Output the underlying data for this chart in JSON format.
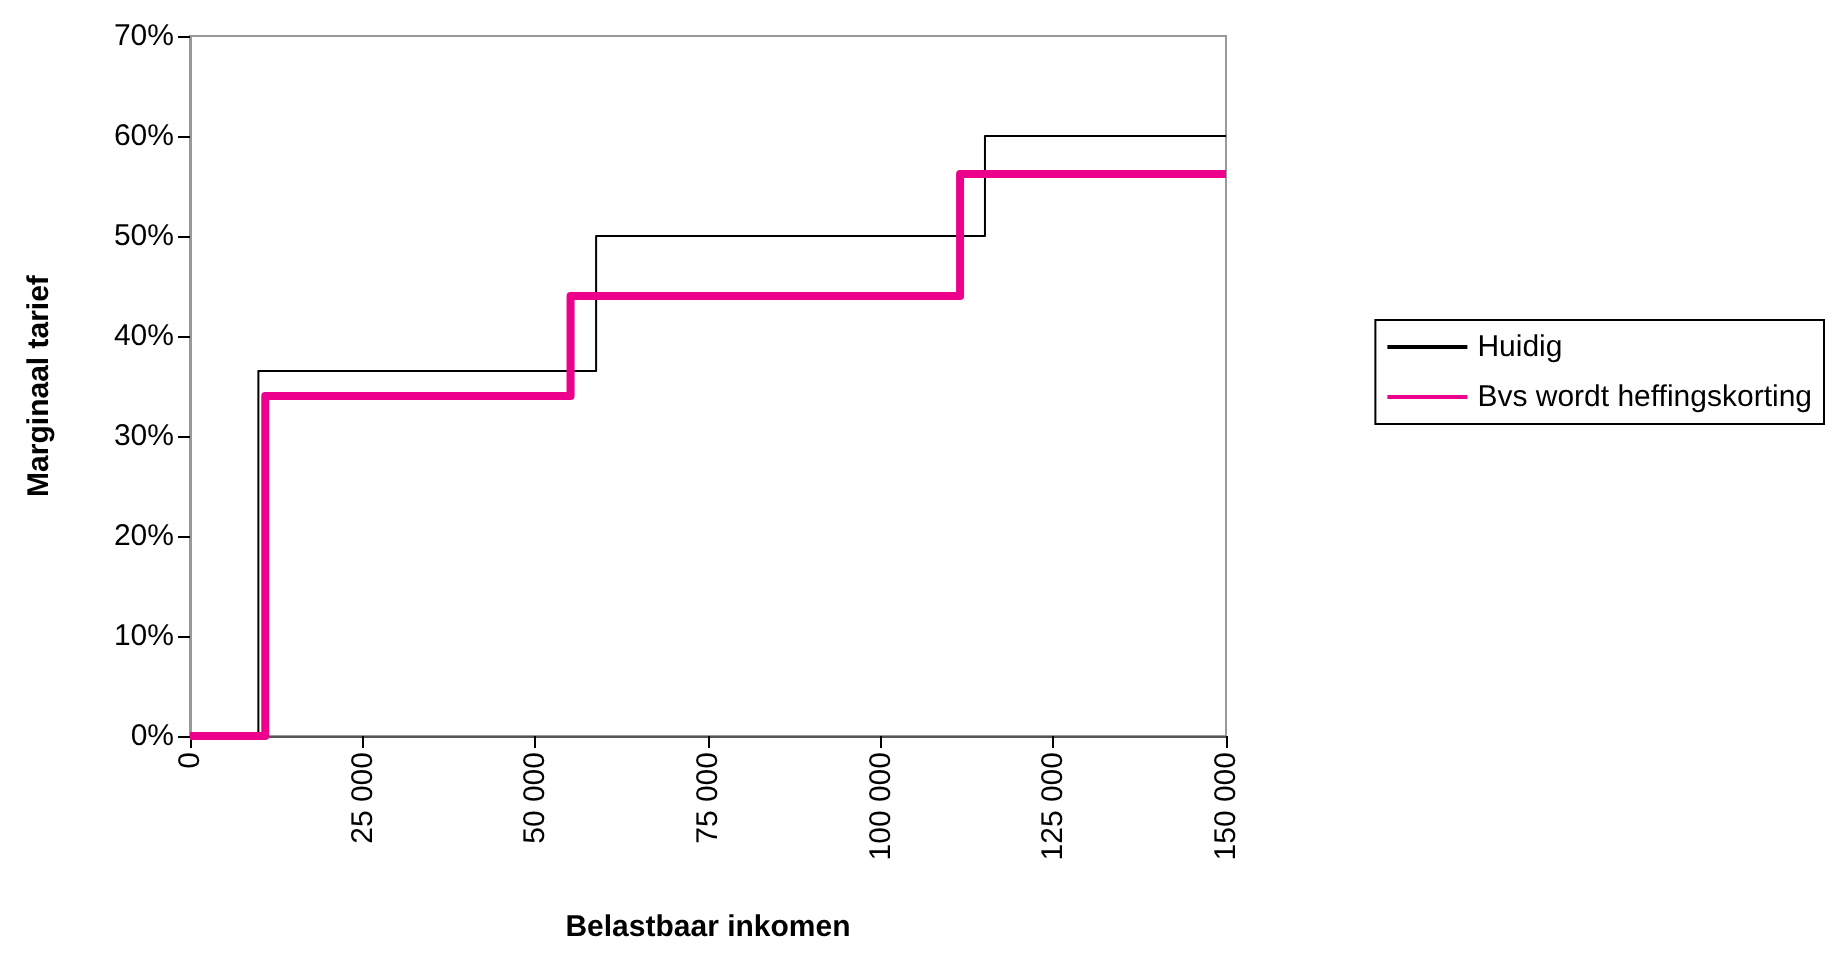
{
  "chart_data": {
    "type": "step",
    "xlabel": "Belastbaar inkomen",
    "ylabel": "Marginaal tarief",
    "series": [
      {
        "name": "Huidig",
        "color": "#000000",
        "x": [
          0,
          9900,
          58800,
          115100,
          150000
        ],
        "values": [
          0,
          36.5,
          50,
          60,
          60
        ]
      },
      {
        "name": "Bvs wordt heffingskorting",
        "color": "#ec008c",
        "x": [
          0,
          10900,
          55100,
          111500,
          150000
        ],
        "values": [
          0,
          34,
          44,
          56.2,
          56.2
        ]
      }
    ],
    "xlim": [
      0,
      150000
    ],
    "xticks": [
      {
        "value": 0,
        "label": "0"
      },
      {
        "value": 25000,
        "label": "25 000"
      },
      {
        "value": 50000,
        "label": "50 000"
      },
      {
        "value": 75000,
        "label": "75 000"
      },
      {
        "value": 100000,
        "label": "100 000"
      },
      {
        "value": 125000,
        "label": "125 000"
      },
      {
        "value": 150000,
        "label": "150 000"
      }
    ],
    "ylim": [
      0,
      70
    ],
    "yticks": [
      {
        "value": 0,
        "label": "0%"
      },
      {
        "value": 10,
        "label": "10%"
      },
      {
        "value": 20,
        "label": "20%"
      },
      {
        "value": 30,
        "label": "30%"
      },
      {
        "value": 40,
        "label": "40%"
      },
      {
        "value": 50,
        "label": "50%"
      },
      {
        "value": 60,
        "label": "60%"
      },
      {
        "value": 70,
        "label": "70%"
      }
    ],
    "grid": false,
    "legend": "right",
    "marker": "none"
  }
}
